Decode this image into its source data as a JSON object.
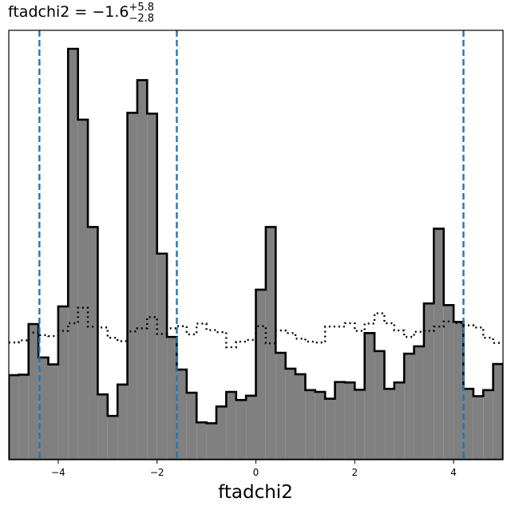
{
  "chart_data": {
    "type": "histogram",
    "title": {
      "prefix": "ftadchi2 = −1.6",
      "superscript": "+5.8",
      "subscript": "−2.8"
    },
    "xlabel": "ftadchi2",
    "ylabel": "",
    "xlim": [
      -5.0,
      5.0
    ],
    "ylim": [
      0,
      1.0
    ],
    "grid": false,
    "bin_edges": [
      -5.0,
      -4.8,
      -4.6,
      -4.4,
      -4.2,
      -4.0,
      -3.8,
      -3.6,
      -3.4,
      -3.2,
      -3.0,
      -2.8,
      -2.6,
      -2.4,
      -2.2,
      -2.0,
      -1.8,
      -1.6,
      -1.4,
      -1.2,
      -1.0,
      -0.8,
      -0.6,
      -0.4,
      -0.2,
      0.0,
      0.2,
      0.4,
      0.6,
      0.8,
      1.0,
      1.2,
      1.4,
      1.6,
      1.8,
      2.0,
      2.2,
      2.4,
      2.6,
      2.8,
      3.0,
      3.2,
      3.4,
      3.6,
      3.8,
      4.0,
      4.2,
      4.4,
      4.6,
      4.8,
      5.0
    ],
    "series": [
      {
        "style": "filled-gray-black-outline",
        "values": [
          0.197,
          0.198,
          0.316,
          0.238,
          0.222,
          0.357,
          0.957,
          0.792,
          0.542,
          0.152,
          0.102,
          0.175,
          0.808,
          0.884,
          0.806,
          0.48,
          0.286,
          0.21,
          0.156,
          0.087,
          0.085,
          0.124,
          0.158,
          0.139,
          0.149,
          0.396,
          0.542,
          0.249,
          0.212,
          0.199,
          0.162,
          0.158,
          0.142,
          0.181,
          0.18,
          0.163,
          0.295,
          0.253,
          0.165,
          0.18,
          0.247,
          0.264,
          0.364,
          0.538,
          0.36,
          0.321,
          0.165,
          0.148,
          0.162,
          0.223
        ]
      },
      {
        "style": "dotted-black-step",
        "values": [
          0.273,
          0.278,
          0.296,
          0.29,
          0.288,
          0.3,
          0.318,
          0.354,
          0.31,
          0.308,
          0.284,
          0.276,
          0.299,
          0.306,
          0.332,
          0.293,
          0.306,
          0.311,
          0.292,
          0.317,
          0.302,
          0.297,
          0.262,
          0.275,
          0.279,
          0.311,
          0.271,
          0.301,
          0.295,
          0.282,
          0.275,
          0.273,
          0.31,
          0.31,
          0.318,
          0.3,
          0.317,
          0.341,
          0.318,
          0.301,
          0.286,
          0.298,
          0.3,
          0.31,
          0.322,
          0.318,
          0.313,
          0.308,
          0.284,
          0.272
        ]
      }
    ],
    "vlines": [
      -4.38,
      -1.6,
      4.2
    ],
    "vline_color": "#1f77b4",
    "fill_color": "#808080",
    "xticks": [
      {
        "value": -4,
        "label": "−4"
      },
      {
        "value": -2,
        "label": "−2"
      },
      {
        "value": 0,
        "label": "0"
      },
      {
        "value": 2,
        "label": "2"
      },
      {
        "value": 4,
        "label": "4"
      }
    ]
  }
}
